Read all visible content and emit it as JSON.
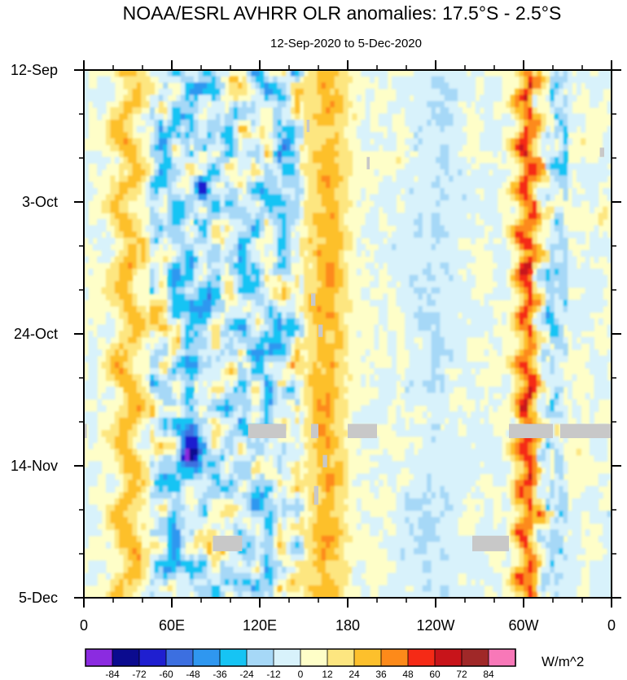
{
  "chart_data": {
    "type": "heatmap",
    "title": "NOAA/ESRL AVHRR OLR anomalies: 17.5°S - 2.5°S",
    "subtitle": "12-Sep-2020 to 5-Dec-2020",
    "x_ticks": [
      "0",
      "60E",
      "120E",
      "180",
      "120W",
      "60W",
      "0"
    ],
    "y_ticks": [
      "12-Sep",
      "3-Oct",
      "24-Oct",
      "14-Nov",
      "5-Dec"
    ],
    "units_label": "W/m^2",
    "colorbar": {
      "levels": [
        "-84",
        "-72",
        "-60",
        "-48",
        "-36",
        "-24",
        "-12",
        "0",
        "12",
        "24",
        "36",
        "48",
        "60",
        "72",
        "84"
      ],
      "colors": [
        "#8b2be0",
        "#0b0b8f",
        "#1f1fd0",
        "#3c6fe0",
        "#2f97f0",
        "#16c4f4",
        "#a6d8f7",
        "#d8f2fb",
        "#fefec8",
        "#fde680",
        "#fdc02c",
        "#fd8a1a",
        "#f52a16",
        "#c8141a",
        "#a02828",
        "#f878b8"
      ]
    },
    "pattern": {
      "x_range_deg": [
        0,
        360
      ],
      "days": 85,
      "notes": "Hovmoller longitude-time OLR anomalies; suppressed convection (positive) near 20E-40E, 150E-180 and 60W-50W; enhanced convection (negative) scattered 60E-150E; weak anomalies over the eastern Pacific"
    }
  }
}
